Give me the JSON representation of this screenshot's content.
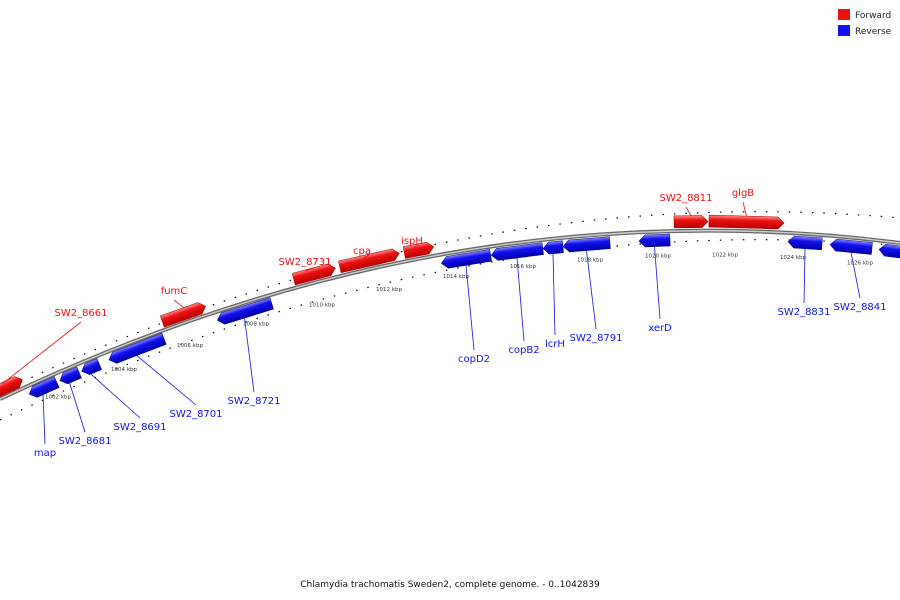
{
  "colors": {
    "forward": "#ee1111",
    "reverse": "#1111ee",
    "backbone": "#999999"
  },
  "legend": [
    {
      "label": "Forward",
      "color": "#ee1111"
    },
    {
      "label": "Reverse",
      "color": "#1111ee"
    }
  ],
  "caption": "Chlamydia trachomatis Sweden2, complete genome. - 0..1042839",
  "tick_labels": [
    "1002 kbp",
    "1004 kbp",
    "1006 kbp",
    "1008 kbp",
    "1010 kbp",
    "1012 kbp",
    "1014 kbp",
    "1016 kbp",
    "1018 kbp",
    "1020 kbp",
    "1022 kbp",
    "1024 kbp",
    "1026 kbp"
  ],
  "genes": [
    {
      "name": "",
      "strand": "forward"
    },
    {
      "name": "SW2_8661",
      "strand": "forward"
    },
    {
      "name": "map",
      "strand": "reverse"
    },
    {
      "name": "SW2_8681",
      "strand": "reverse"
    },
    {
      "name": "SW2_8691",
      "strand": "reverse"
    },
    {
      "name": "SW2_8701",
      "strand": "reverse"
    },
    {
      "name": "fumC",
      "strand": "forward"
    },
    {
      "name": "SW2_8721",
      "strand": "reverse"
    },
    {
      "name": "SW2_8731",
      "strand": "forward"
    },
    {
      "name": "cpa",
      "strand": "forward"
    },
    {
      "name": "ispH",
      "strand": "forward"
    },
    {
      "name": "copD2",
      "strand": "reverse"
    },
    {
      "name": "copB2",
      "strand": "reverse"
    },
    {
      "name": "lcrH",
      "strand": "reverse"
    },
    {
      "name": "SW2_8791",
      "strand": "reverse"
    },
    {
      "name": "xerD",
      "strand": "reverse"
    },
    {
      "name": "SW2_8811",
      "strand": "forward"
    },
    {
      "name": "glgB",
      "strand": "forward"
    },
    {
      "name": "SW2_8831",
      "strand": "reverse"
    },
    {
      "name": "SW2_8841",
      "strand": "reverse"
    },
    {
      "name": "",
      "strand": "reverse"
    }
  ]
}
